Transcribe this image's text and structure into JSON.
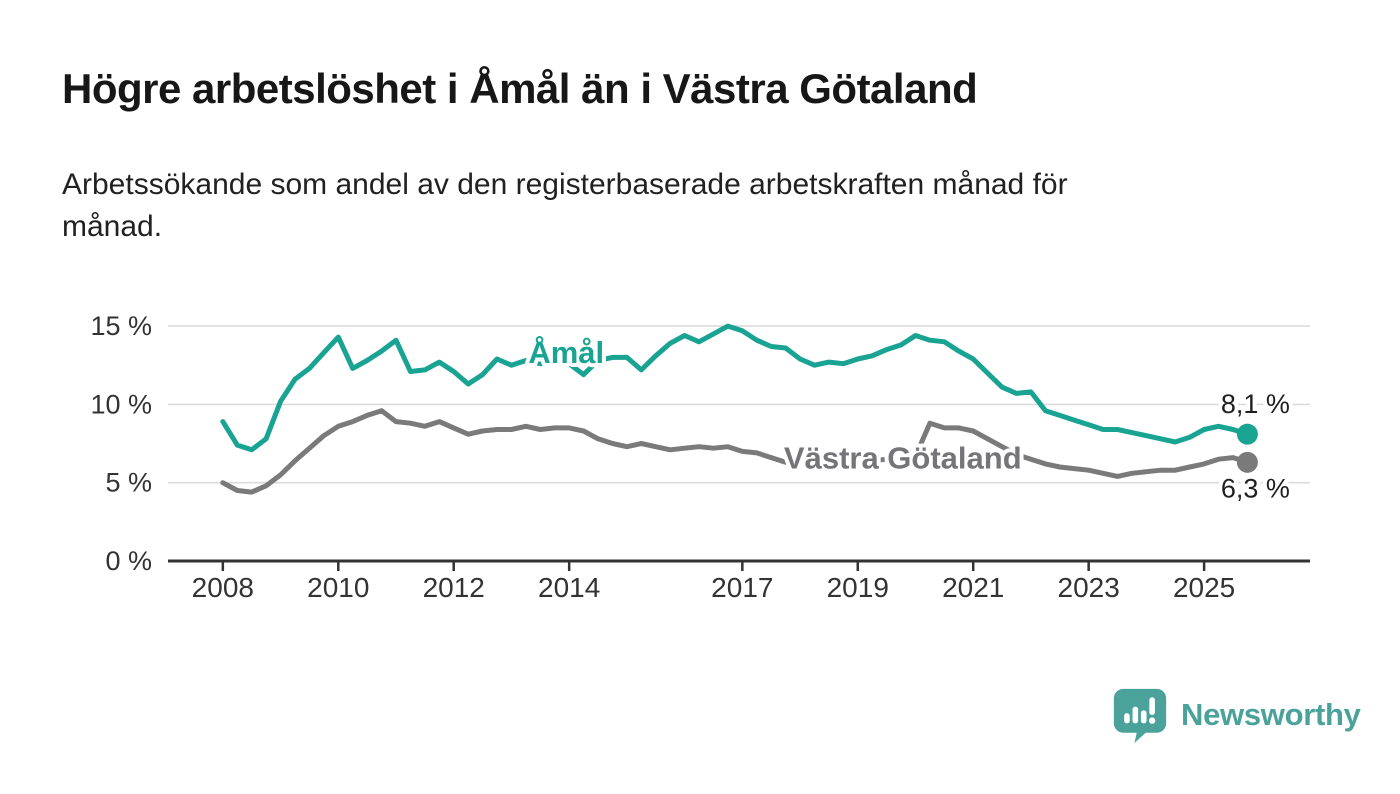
{
  "header": {
    "title": "Högre arbetslöshet i Åmål än i Västra Götaland",
    "subtitle_lines": [
      "Arbetssökande som andel av den registerbaserade arbetskraften månad för",
      "månad."
    ]
  },
  "branding": {
    "logo_text": "Newsworthy",
    "logo_color": "#4AA29B",
    "logo_mark_icon": "speech-bubble-bar-chart-icon"
  },
  "chart_data": {
    "type": "line",
    "title": "Högre arbetslöshet i Åmål än i Västra Götaland",
    "subtitle": "Arbetssökande som andel av den registerbaserade arbetskraften månad för månad.",
    "ylabel": "",
    "xlabel": "",
    "grid": "horizontal",
    "legend_position": "inline-labels",
    "x_start": 2008,
    "x_step": 0.25,
    "xlim": [
      2007.05,
      2026.8
    ],
    "ylim": [
      0,
      16.73
    ],
    "x_ticks": [
      2008,
      2010,
      2012,
      2014,
      2017,
      2019,
      2021,
      2023,
      2025
    ],
    "x_tick_labels": [
      "2008",
      "2010",
      "2012",
      "2014",
      "2017",
      "2019",
      "2021",
      "2023",
      "2025"
    ],
    "y_ticks": [
      0,
      5,
      10,
      15
    ],
    "y_tick_labels": [
      "0 %",
      "5 %",
      "10 %",
      "15 %"
    ],
    "colors": {
      "grid": "#DBDBDB",
      "axis": "#333333",
      "tick_text": "#333333",
      "end_label_text": "#1F1F1F"
    },
    "series": [
      {
        "name": "Västra Götaland",
        "color": "#7A7A7A",
        "label_color": "#747479",
        "end_label": "6,3 %",
        "end_label_side": "below",
        "label_pos": {
          "x": 2019.78,
          "y": 6.54
        },
        "values": [
          5.0,
          4.5,
          4.4,
          4.8,
          5.5,
          6.4,
          7.2,
          8.0,
          8.6,
          8.9,
          9.3,
          9.6,
          8.9,
          8.8,
          8.6,
          8.9,
          8.5,
          8.1,
          8.3,
          8.4,
          8.4,
          8.6,
          8.4,
          8.5,
          8.5,
          8.3,
          7.8,
          7.5,
          7.3,
          7.5,
          7.3,
          7.1,
          7.2,
          7.3,
          7.2,
          7.3,
          7.0,
          6.9,
          6.6,
          6.3,
          6.4,
          6.5,
          6.4,
          6.4,
          6.4,
          6.4,
          6.5,
          6.5,
          6.7,
          8.8,
          8.5,
          8.5,
          8.3,
          7.8,
          7.3,
          6.8,
          6.5,
          6.2,
          6.0,
          5.9,
          5.8,
          5.6,
          5.4,
          5.6,
          5.7,
          5.8,
          5.8,
          6.0,
          6.2,
          6.5,
          6.6,
          6.3
        ]
      },
      {
        "name": "Åmål",
        "color": "#19A392",
        "label_color": "#19A392",
        "end_label": "8,1 %",
        "end_label_side": "above",
        "label_pos": {
          "x": 2013.95,
          "y": 13.27
        },
        "values": [
          8.9,
          7.4,
          7.1,
          7.8,
          10.2,
          11.6,
          12.3,
          13.3,
          14.3,
          12.3,
          12.8,
          13.4,
          14.1,
          12.1,
          12.2,
          12.7,
          12.1,
          11.3,
          11.9,
          12.9,
          12.5,
          12.8,
          12.6,
          12.7,
          12.6,
          11.9,
          12.8,
          13.0,
          13.0,
          12.2,
          13.1,
          13.9,
          14.4,
          14.0,
          14.5,
          15.0,
          14.7,
          14.1,
          13.7,
          13.6,
          12.9,
          12.5,
          12.7,
          12.6,
          12.9,
          13.1,
          13.5,
          13.8,
          14.4,
          14.1,
          14.0,
          13.4,
          12.9,
          12.0,
          11.1,
          10.7,
          10.8,
          9.6,
          9.3,
          9.0,
          8.7,
          8.4,
          8.4,
          8.2,
          8.0,
          7.8,
          7.6,
          7.9,
          8.4,
          8.6,
          8.4,
          8.1
        ]
      }
    ]
  }
}
